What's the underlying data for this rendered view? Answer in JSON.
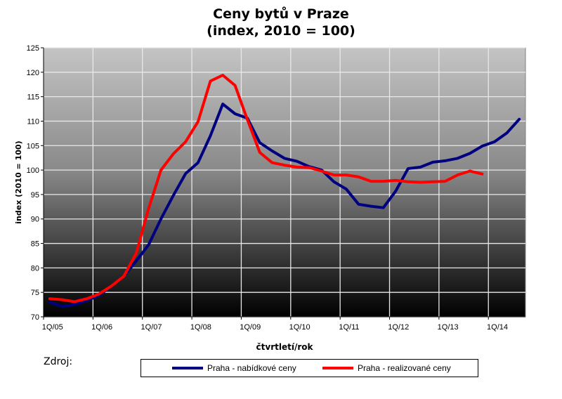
{
  "chart_data": {
    "type": "line",
    "title": "Ceny bytů v Praze",
    "subtitle": "(index, 2010 = 100)",
    "xlabel": "čtvrtletí/rok",
    "ylabel": "index (2010 = 100)",
    "ylim": [
      70,
      125
    ],
    "yticks": [
      "70",
      "75",
      "80",
      "85",
      "90",
      "95",
      "100",
      "105",
      "110",
      "115",
      "120",
      "125"
    ],
    "grid": true,
    "legend_position": "bottom",
    "categories": [
      "1Q/05",
      "2Q/05",
      "3Q/05",
      "4Q/05",
      "1Q/06",
      "2Q/06",
      "3Q/06",
      "4Q/06",
      "1Q/07",
      "2Q/07",
      "3Q/07",
      "4Q/07",
      "1Q/08",
      "2Q/08",
      "3Q/08",
      "4Q/08",
      "1Q/09",
      "2Q/09",
      "3Q/09",
      "4Q/09",
      "1Q/10",
      "2Q/10",
      "3Q/10",
      "4Q/10",
      "1Q/11",
      "2Q/11",
      "3Q/11",
      "4Q/11",
      "1Q/12",
      "2Q/12",
      "3Q/12",
      "4Q/12",
      "1Q/13",
      "2Q/13",
      "3Q/13",
      "4Q/13",
      "1Q/14",
      "2Q/14",
      "3Q/14"
    ],
    "xtick_labels": [
      "1Q/05",
      "1Q/06",
      "1Q/07",
      "1Q/08",
      "1Q/09",
      "1Q/10",
      "1Q/11",
      "1Q/12",
      "1Q/13",
      "1Q/14"
    ],
    "series": [
      {
        "name": "Praha - nabídkové ceny",
        "color": "#000080",
        "values": [
          73.0,
          72.1,
          72.5,
          73.3,
          74.4,
          76.3,
          78.3,
          81.4,
          84.7,
          90.0,
          94.8,
          99.3,
          101.5,
          107.0,
          113.5,
          111.5,
          110.6,
          105.6,
          103.9,
          102.4,
          101.8,
          100.7,
          100.0,
          97.6,
          96.1,
          93.0,
          92.6,
          92.3,
          95.7,
          100.3,
          100.6,
          101.6,
          101.9,
          102.4,
          103.4,
          104.9,
          105.8,
          107.6,
          110.4
        ]
      },
      {
        "name": "Praha - realizované ceny",
        "color": "#ff0000",
        "values": [
          73.7,
          73.5,
          73.1,
          73.7,
          74.7,
          76.3,
          78.3,
          83.0,
          92.1,
          100.0,
          103.3,
          105.8,
          109.9,
          118.2,
          119.4,
          117.3,
          110.3,
          103.6,
          101.5,
          101.0,
          100.6,
          100.5,
          99.8,
          99.0,
          99.0,
          98.6,
          97.7,
          97.7,
          97.9,
          97.6,
          97.5,
          97.6,
          97.7,
          99.0,
          99.8,
          99.2,
          null,
          null,
          null
        ]
      }
    ]
  },
  "footer": {
    "source_label": "Zdroj:"
  }
}
